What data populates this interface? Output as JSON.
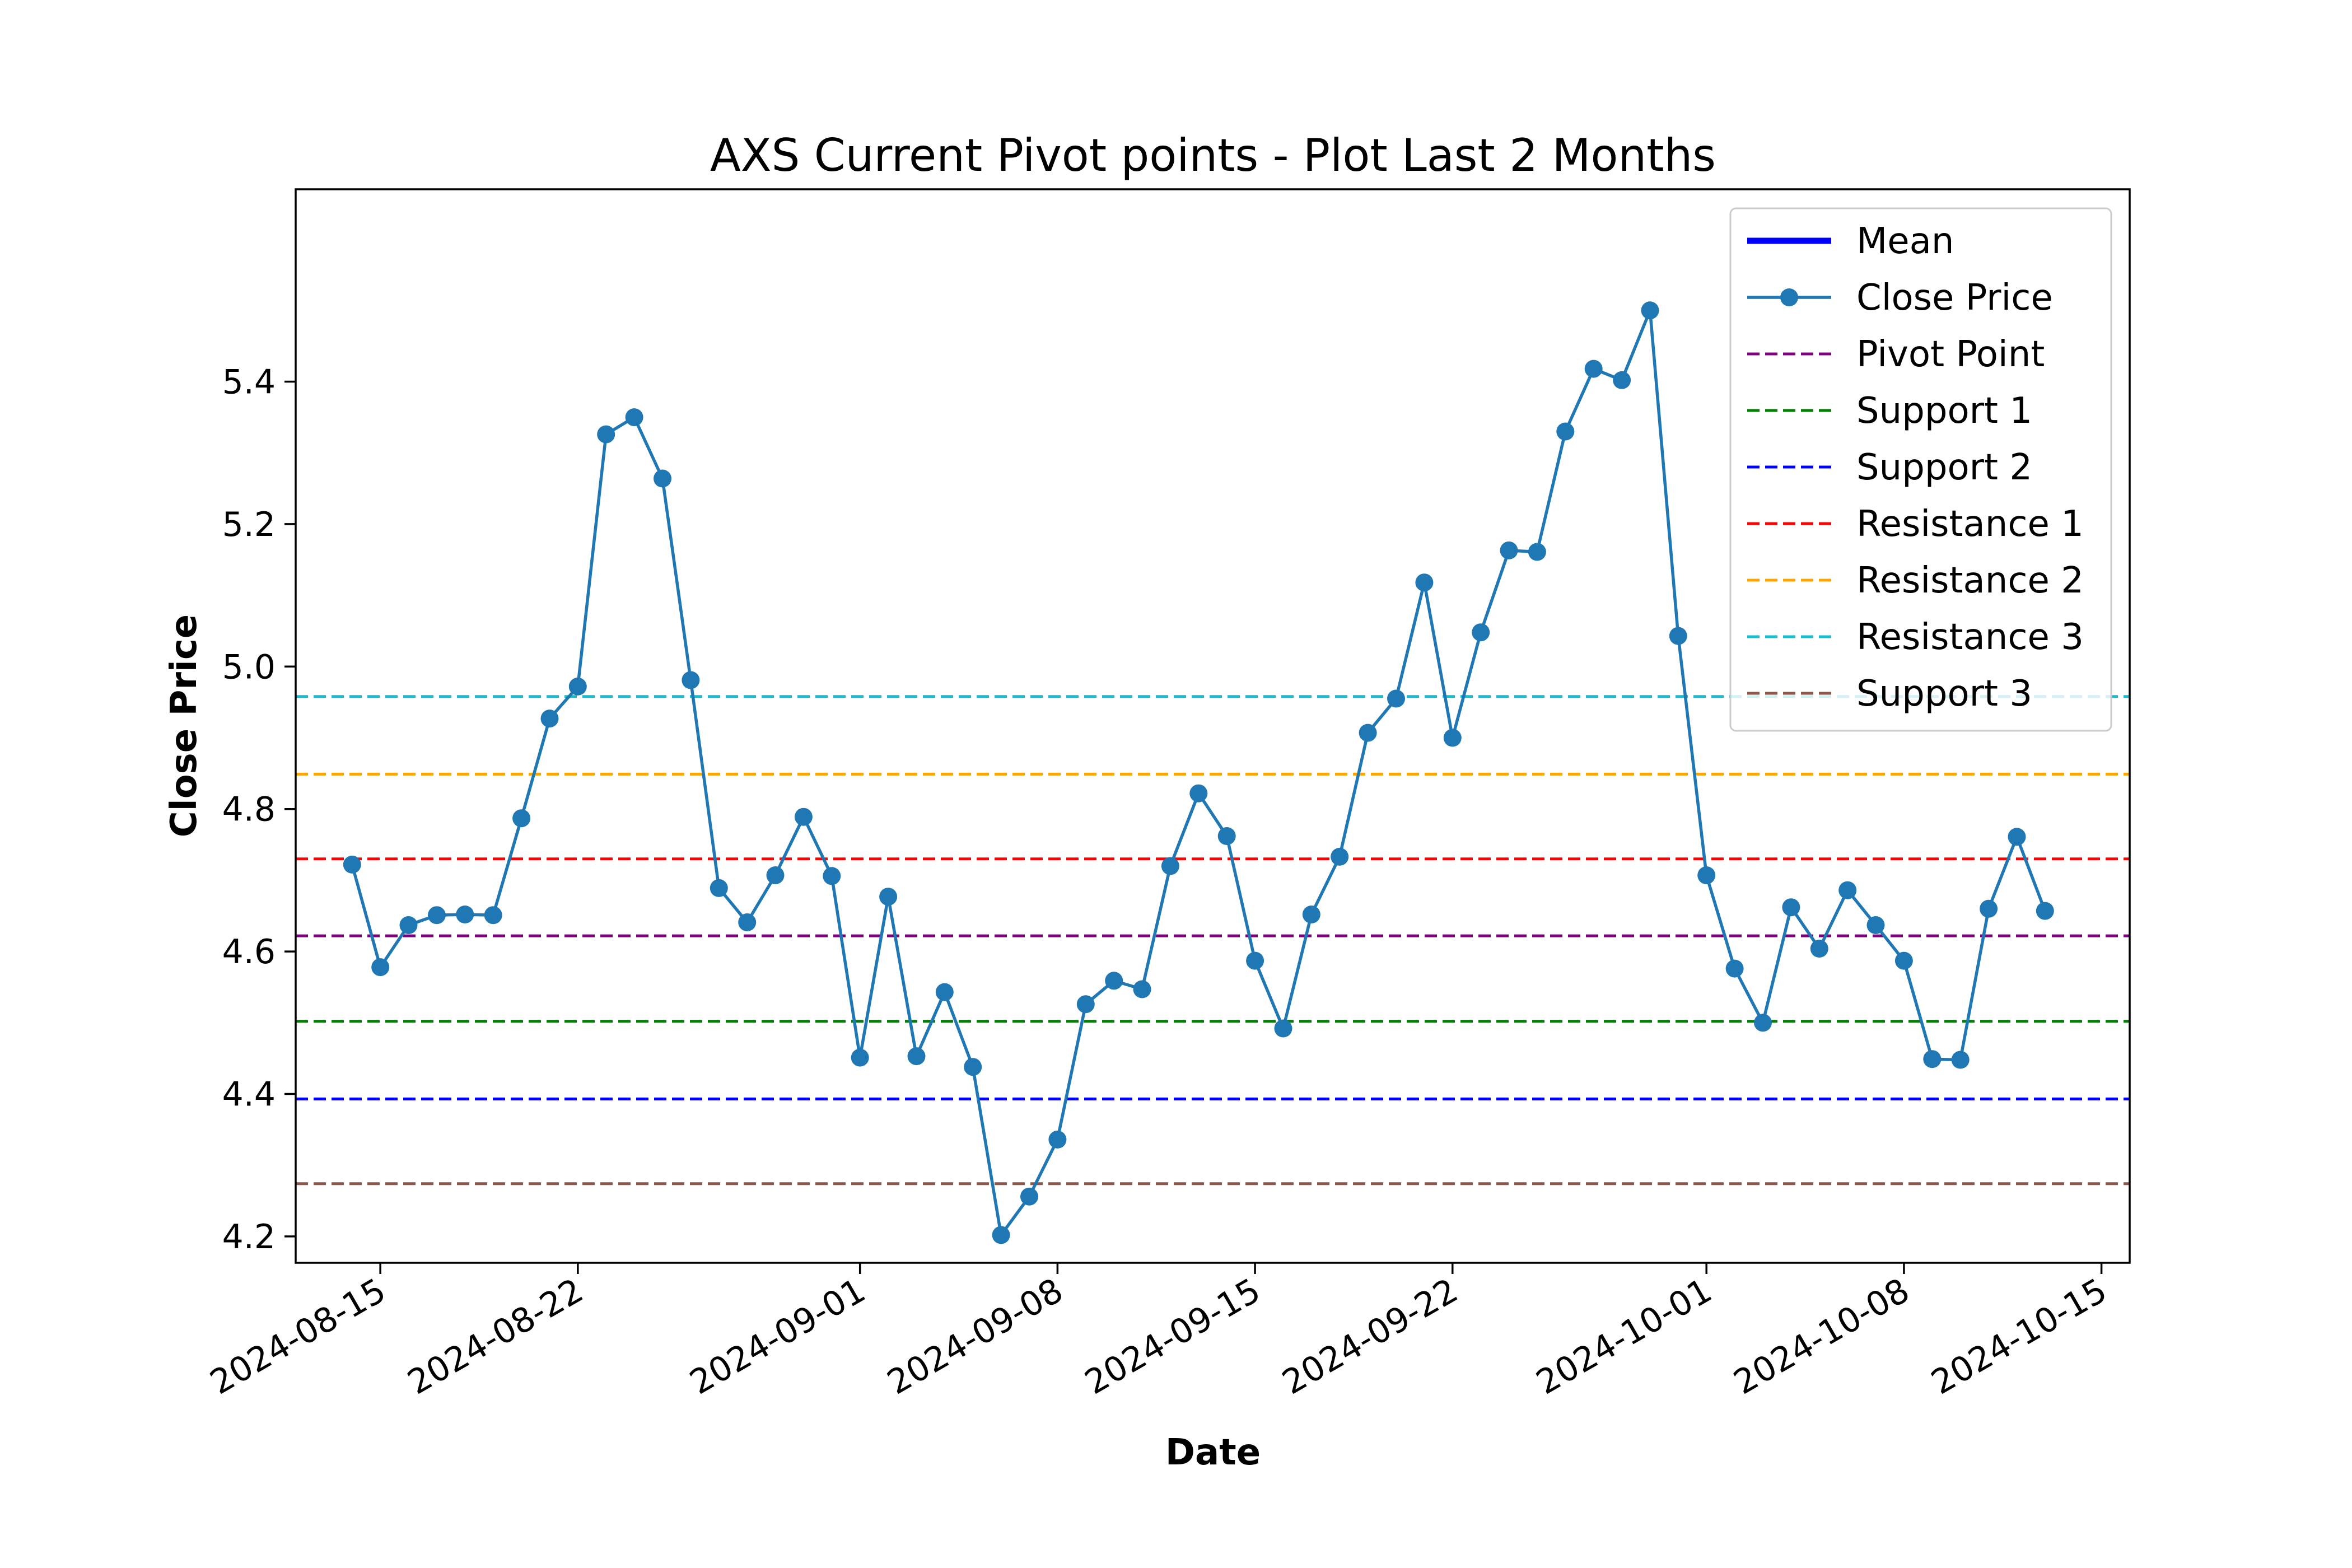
{
  "chart_data": {
    "type": "line",
    "title": "AXS Current Pivot points - Plot Last 2 Months",
    "xlabel": "Date",
    "ylabel": "Close Price",
    "xlim": [
      "2024-08-12",
      "2024-10-16"
    ],
    "ylim": [
      4.163,
      5.67
    ],
    "x_ticks": [
      "2024-08-15",
      "2024-08-22",
      "2024-09-01",
      "2024-09-08",
      "2024-09-15",
      "2024-09-22",
      "2024-10-01",
      "2024-10-08",
      "2024-10-15"
    ],
    "y_ticks": [
      4.2,
      4.4,
      4.6,
      4.8,
      5.0,
      5.2,
      5.4
    ],
    "grid": false,
    "legend_position": "top-right",
    "legend": [
      "Mean",
      "Close Price",
      "Pivot Point",
      "Support 1",
      "Support 2",
      "Resistance 1",
      "Resistance 2",
      "Resistance 3",
      "Support 3"
    ],
    "series": [
      {
        "name": "Close Price",
        "color": "#1f77b4",
        "x": [
          "2024-08-14",
          "2024-08-15",
          "2024-08-16",
          "2024-08-17",
          "2024-08-18",
          "2024-08-19",
          "2024-08-20",
          "2024-08-21",
          "2024-08-22",
          "2024-08-23",
          "2024-08-24",
          "2024-08-25",
          "2024-08-26",
          "2024-08-27",
          "2024-08-28",
          "2024-08-29",
          "2024-08-30",
          "2024-08-31",
          "2024-09-01",
          "2024-09-02",
          "2024-09-03",
          "2024-09-04",
          "2024-09-05",
          "2024-09-06",
          "2024-09-07",
          "2024-09-08",
          "2024-09-09",
          "2024-09-10",
          "2024-09-11",
          "2024-09-12",
          "2024-09-13",
          "2024-09-14",
          "2024-09-15",
          "2024-09-16",
          "2024-09-17",
          "2024-09-18",
          "2024-09-19",
          "2024-09-20",
          "2024-09-21",
          "2024-09-22",
          "2024-09-23",
          "2024-09-24",
          "2024-09-25",
          "2024-09-26",
          "2024-09-27",
          "2024-09-28",
          "2024-09-29",
          "2024-09-30",
          "2024-10-01",
          "2024-10-02",
          "2024-10-03",
          "2024-10-04",
          "2024-10-05",
          "2024-10-06",
          "2024-10-07",
          "2024-10-08",
          "2024-10-09",
          "2024-10-10",
          "2024-10-11",
          "2024-10-12",
          "2024-10-13"
        ],
        "y": [
          4.722,
          4.578,
          4.637,
          4.651,
          4.652,
          4.651,
          4.787,
          4.927,
          4.972,
          5.326,
          5.35,
          5.264,
          4.981,
          4.689,
          4.641,
          4.707,
          4.789,
          4.706,
          4.451,
          4.677,
          4.453,
          4.543,
          4.438,
          4.202,
          4.256,
          4.336,
          4.526,
          4.559,
          4.547,
          4.72,
          4.822,
          4.762,
          4.587,
          4.492,
          4.652,
          4.733,
          4.907,
          4.955,
          5.118,
          4.9,
          5.048,
          5.163,
          5.161,
          5.33,
          5.418,
          5.402,
          5.5,
          5.043,
          4.707,
          4.576,
          4.5,
          4.662,
          4.604,
          4.686,
          4.637,
          4.587,
          4.449,
          4.448,
          4.66,
          4.761,
          4.657
        ]
      }
    ],
    "mean": {
      "name": "Mean",
      "color": "#0000ff"
    },
    "levels": [
      {
        "name": "Pivot Point",
        "value": 4.622,
        "color": "#800080"
      },
      {
        "name": "Support 1",
        "value": 4.502,
        "color": "#008000"
      },
      {
        "name": "Support 2",
        "value": 4.393,
        "color": "#0000ff"
      },
      {
        "name": "Resistance 1",
        "value": 4.73,
        "color": "#ff0000"
      },
      {
        "name": "Resistance 2",
        "value": 4.849,
        "color": "#ffa500"
      },
      {
        "name": "Resistance 3",
        "value": 4.958,
        "color": "#17becf"
      },
      {
        "name": "Support 3",
        "value": 4.274,
        "color": "#8c564b"
      }
    ]
  }
}
